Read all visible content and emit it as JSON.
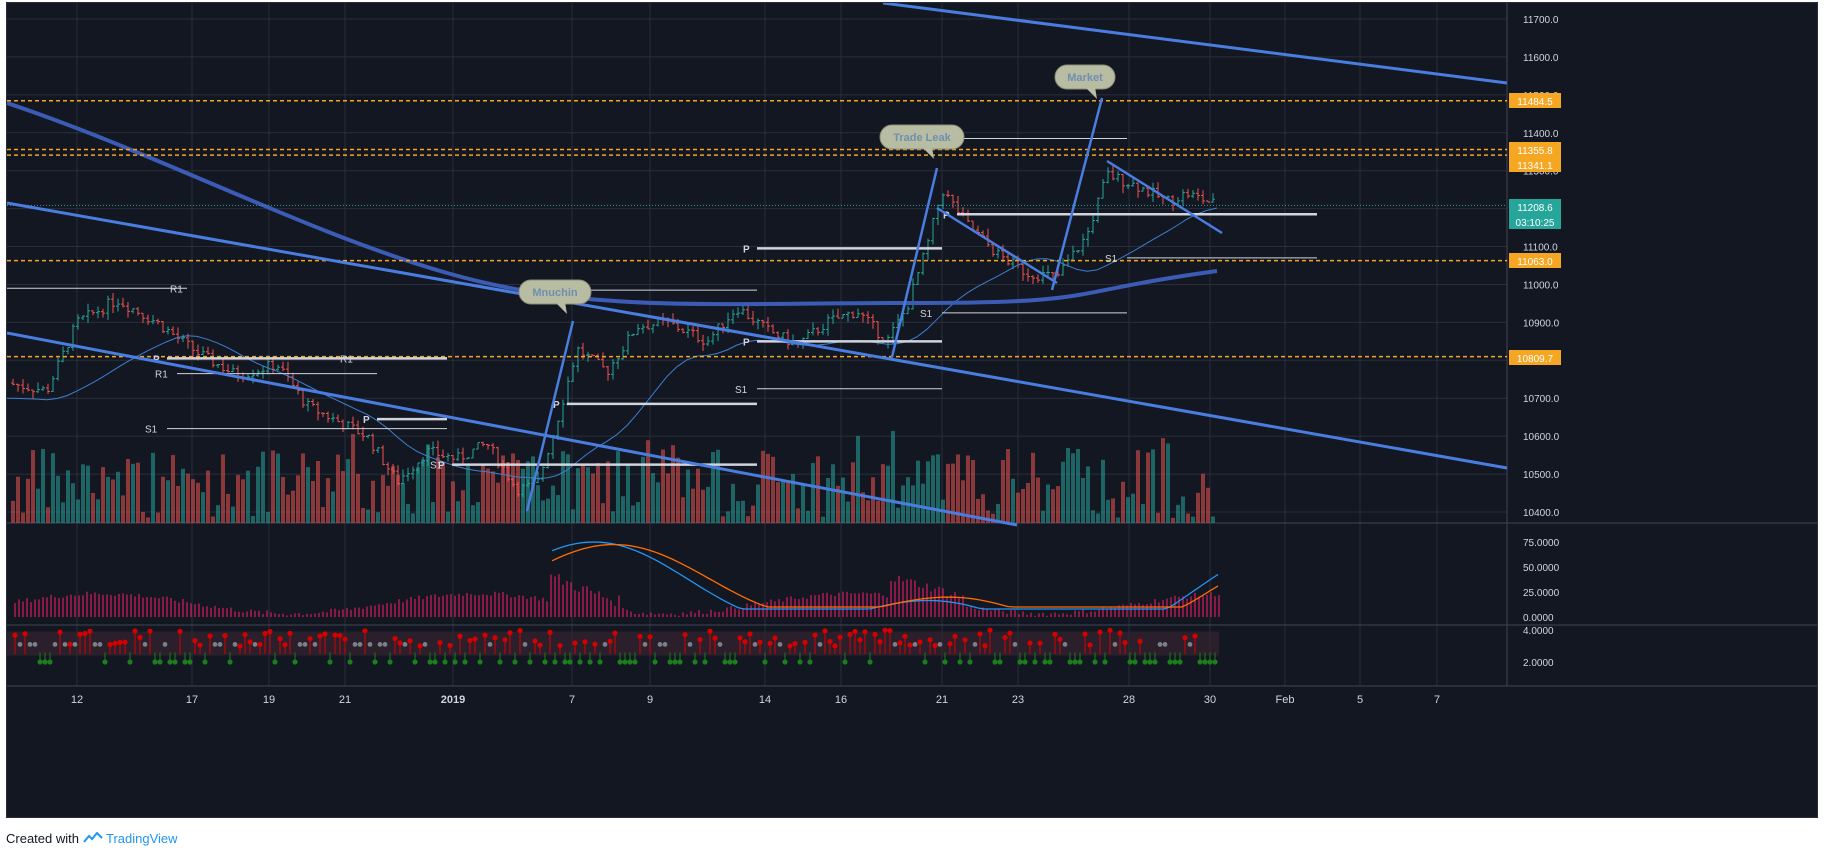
{
  "footer": {
    "prefix": "Created with",
    "brand": "TradingView"
  },
  "colors": {
    "background": "#131722",
    "grid": "#2a2e39",
    "up": "#26a69a",
    "down": "#ef5350",
    "trendline": "#4a7de0",
    "pivot": "#d1d4dc",
    "level": "#f5a623",
    "ma": "#3d7fd1",
    "stoch_k": "#2196f3",
    "stoch_d": "#ff6d00",
    "histogram": "#d81b60",
    "dot_red": "#d50000",
    "dot_green": "#1b7d1b"
  },
  "chart_data": {
    "type": "candlestick",
    "price_axis": {
      "ticks": [
        10400,
        10500,
        10600,
        10700,
        10800,
        10900,
        11000,
        11100,
        11200,
        11300,
        11400,
        11500,
        11600,
        11700
      ],
      "tick_labels": [
        "10400.0",
        "10500.0",
        "10600.0",
        "10700.0",
        "10800.0",
        "10900.0",
        "11000.0",
        "11100.0",
        "11200.0",
        "11300.0",
        "11400.0",
        "11500.0",
        "11600.0",
        "11700.0"
      ],
      "range": [
        10380,
        11740
      ]
    },
    "time_axis": {
      "labels": [
        "12",
        "17",
        "19",
        "21",
        "2019",
        "7",
        "9",
        "14",
        "16",
        "21",
        "23",
        "28",
        "30",
        "Feb",
        "5",
        "7"
      ]
    },
    "price_tags": [
      {
        "label": "11484.5",
        "value": 11484.5,
        "color": "#f5a623"
      },
      {
        "label": "11355.8",
        "value": 11355.8,
        "color": "#f5a623"
      },
      {
        "label": "11341.1",
        "value": 11341.1,
        "color": "#f5a623"
      },
      {
        "label": "11208.6",
        "value": 11208.6,
        "color": "#26a69a"
      },
      {
        "label": "03:10:25",
        "value": 11178,
        "color": "#26a69a"
      },
      {
        "label": "11063.0",
        "value": 11063.0,
        "color": "#f5a623"
      },
      {
        "label": "10809.7",
        "value": 10809.7,
        "color": "#f5a623"
      }
    ],
    "horizontal_levels": [
      11484.5,
      11355.8,
      11341.1,
      11063.0,
      10809.7
    ],
    "last_price": 11208.6,
    "annotations": [
      {
        "text": "Mnuchin",
        "value": 10990
      },
      {
        "text": "Trade Leak",
        "value": 11385
      },
      {
        "text": "Market",
        "value": 11535
      }
    ],
    "pivots": [
      {
        "label": "R1",
        "value": 10990
      },
      {
        "label": "P",
        "value": 10805
      },
      {
        "label": "R1",
        "value": 10805
      },
      {
        "label": "S1",
        "value": 10620
      },
      {
        "label": "R1",
        "value": 10765
      },
      {
        "label": "P",
        "value": 10645
      },
      {
        "label": "P",
        "value": 10525
      },
      {
        "label": "S1",
        "value": 10525
      },
      {
        "label": "P",
        "value": 10685
      },
      {
        "label": "R1",
        "value": 10985
      },
      {
        "label": "P",
        "value": 10850
      },
      {
        "label": "S1",
        "value": 10725
      },
      {
        "label": "P",
        "value": 11095
      },
      {
        "label": "S1",
        "value": 10925
      },
      {
        "label": "R1",
        "value": 11385
      },
      {
        "label": "P",
        "value": 11185
      },
      {
        "label": "S1",
        "value": 11070
      }
    ],
    "stoch_axis": {
      "ticks": [
        0,
        25,
        50,
        75
      ],
      "tick_labels": [
        "0.0000",
        "25.0000",
        "50.0000",
        "75.0000"
      ],
      "range": [
        -5,
        90
      ]
    },
    "dots_axis": {
      "ticks": [
        2,
        4
      ],
      "tick_labels": [
        "2.0000",
        "4.0000"
      ]
    },
    "watermark_labels": [
      "S1",
      "S1"
    ]
  }
}
